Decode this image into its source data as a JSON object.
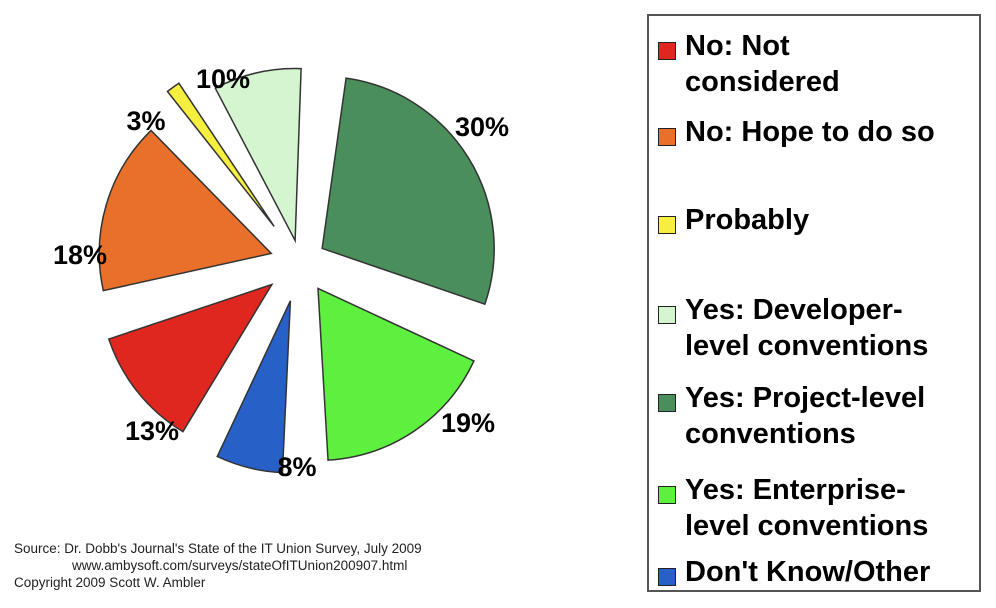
{
  "chart_data": {
    "type": "pie",
    "categories": [
      "No: Not considered",
      "No: Hope to do so",
      "Probably",
      "Yes: Developer-level conventions",
      "Yes: Project-level conventions",
      "Yes: Enterprise-level conventions",
      "Don't Know/Other"
    ],
    "values": [
      13,
      18,
      3,
      10,
      30,
      19,
      8
    ],
    "labels": [
      "13%",
      "18%",
      "3%",
      "10%",
      "30%",
      "19%",
      "8%"
    ],
    "colors": [
      "#e0271f",
      "#e8702a",
      "#f7ef3f",
      "#d4f5cf",
      "#4a8f5b",
      "#5ef03f",
      "#2760c7"
    ],
    "legend": {
      "placement": "right",
      "entries": [
        "No: Not\nconsidered",
        "No: Hope to do so",
        "Probably",
        "Yes: Developer-\nlevel conventions",
        "Yes: Project-level\nconventions",
        "Yes: Enterprise-\nlevel conventions",
        "Don't Know/Other"
      ]
    }
  },
  "source": {
    "line1": "Source: Dr. Dobb's Journal's State of the IT Union Survey, July 2009",
    "line2": "www.ambysoft.com/surveys/stateOfITUnion200907.html",
    "line3": "Copyright 2009 Scott W. Ambler"
  }
}
